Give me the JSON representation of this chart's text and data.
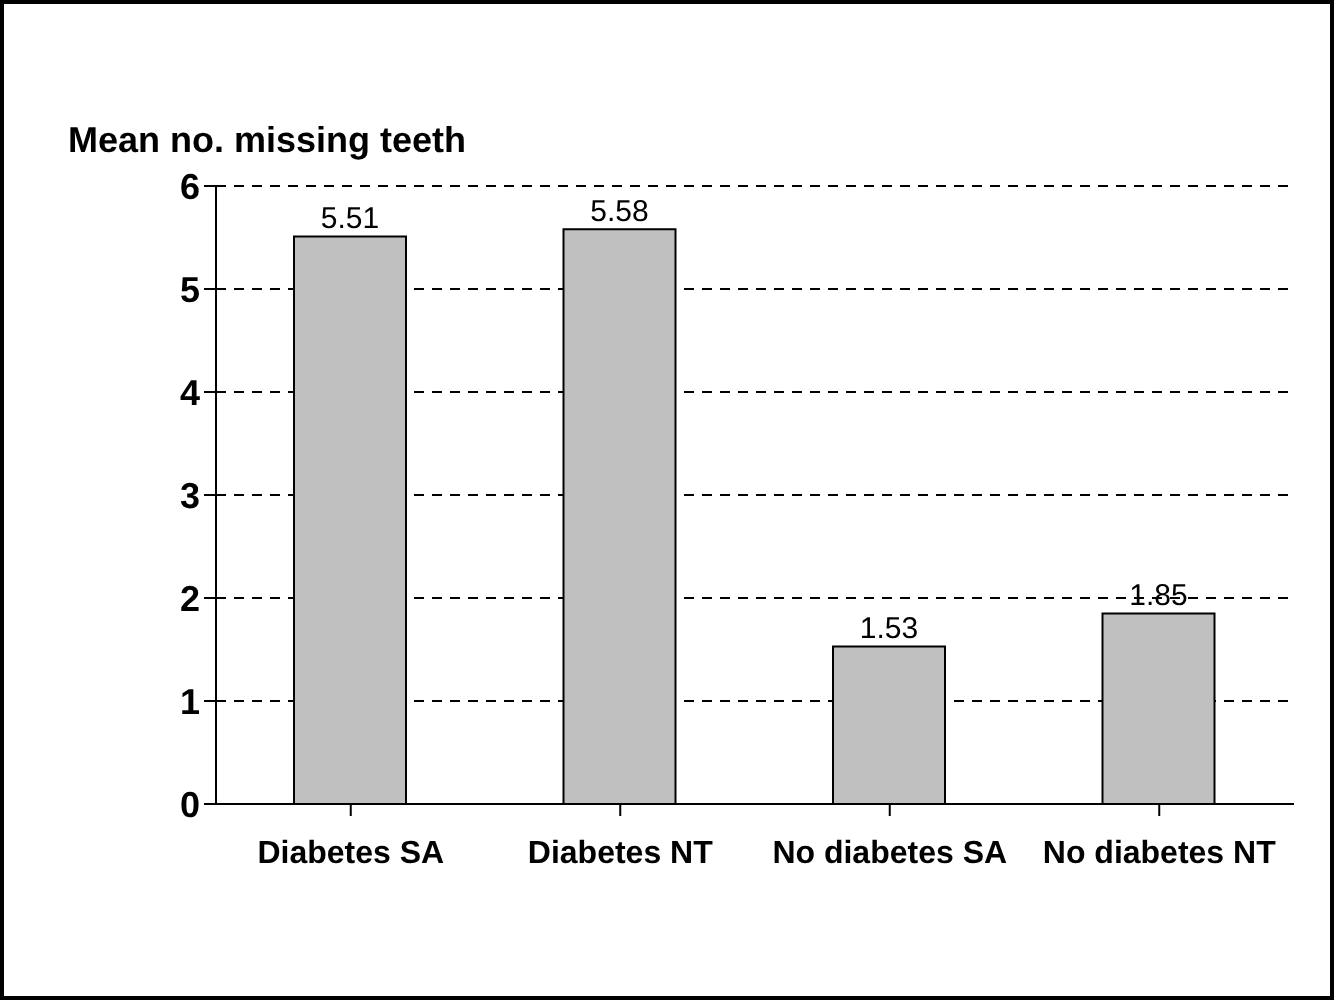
{
  "chart_data": {
    "type": "bar",
    "ylabel": "Mean no. missing teeth",
    "categories": [
      "Diabetes SA",
      "Diabetes NT",
      "No diabetes SA",
      "No diabetes NT"
    ],
    "values": [
      5.51,
      5.58,
      1.53,
      1.85
    ],
    "color": "#c0c0c0",
    "ylim": [
      0,
      6
    ],
    "yticks": [
      0,
      1,
      2,
      3,
      4,
      5,
      6
    ],
    "grid": "y",
    "data_labels": true
  }
}
